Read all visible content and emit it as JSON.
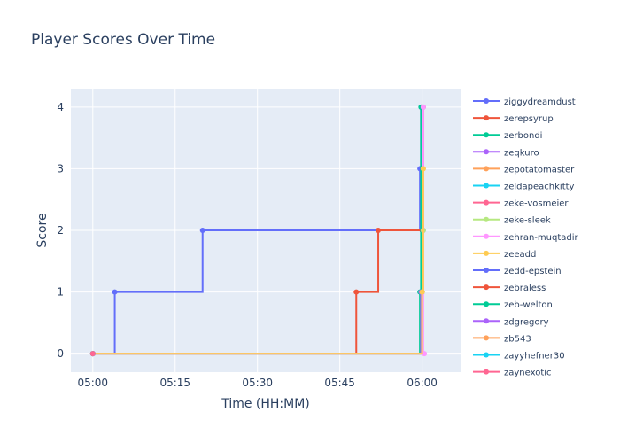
{
  "chart_data": {
    "type": "line",
    "line_shape": "step",
    "title": "Player Scores Over Time",
    "xlabel": "Time (HH:MM)",
    "ylabel": "Score",
    "xlim": [
      "04:56",
      "06:07"
    ],
    "ylim": [
      -0.3,
      4.3
    ],
    "x_ticks": [
      "05:00",
      "05:15",
      "05:30",
      "05:45",
      "06:00"
    ],
    "y_ticks": [
      0,
      1,
      2,
      3,
      4
    ],
    "grid": true,
    "legend_position": "right",
    "plot_bg": "#E5ECF6",
    "series": [
      {
        "name": "ziggydreamdust",
        "color": "#636EFA",
        "points": [
          [
            "05:00",
            0
          ],
          [
            "05:04",
            1
          ],
          [
            "05:20",
            2
          ],
          [
            "06:00",
            2
          ],
          [
            "05:59.6",
            3
          ],
          [
            "05:59.8",
            4
          ]
        ]
      },
      {
        "name": "zerepsyrup",
        "color": "#EF553B",
        "points": [
          [
            "05:00",
            0
          ],
          [
            "05:48",
            1
          ],
          [
            "05:52",
            2
          ],
          [
            "06:00",
            2
          ]
        ]
      },
      {
        "name": "zerbondi",
        "color": "#00CC96",
        "points": [
          [
            "05:00",
            0
          ],
          [
            "05:59.6",
            1
          ],
          [
            "05:59.8",
            4
          ]
        ]
      },
      {
        "name": "zeqkuro",
        "color": "#AB63FA",
        "points": [
          [
            "05:00",
            0
          ],
          [
            "05:59.8",
            1
          ],
          [
            "06:00.2",
            2
          ]
        ]
      },
      {
        "name": "zepotatomaster",
        "color": "#FFA15A",
        "points": [
          [
            "05:00",
            0
          ],
          [
            "06:00",
            1
          ],
          [
            "06:00.2",
            3
          ]
        ]
      },
      {
        "name": "zeldapeachkitty",
        "color": "#19D3F3",
        "points": [
          [
            "05:00",
            0
          ],
          [
            "06:00",
            1
          ],
          [
            "06:00.2",
            4
          ]
        ]
      },
      {
        "name": "zeke-vosmeier",
        "color": "#FF6692",
        "points": [
          [
            "05:00",
            0
          ],
          [
            "06:00",
            1
          ],
          [
            "06:00.2",
            4
          ]
        ]
      },
      {
        "name": "zeke-sleek",
        "color": "#B6E880",
        "points": [
          [
            "05:00",
            0
          ],
          [
            "06:00",
            1
          ],
          [
            "06:00.2",
            2
          ]
        ]
      },
      {
        "name": "zehran-muqtadir",
        "color": "#FF97FF",
        "points": [
          [
            "05:00",
            0
          ],
          [
            "06:00.4",
            0
          ],
          [
            "06:00.2",
            4
          ]
        ]
      },
      {
        "name": "zeeadd",
        "color": "#FECB52",
        "points": [
          [
            "05:00",
            0
          ],
          [
            "06:00",
            1
          ],
          [
            "06:00.2",
            3
          ]
        ]
      },
      {
        "name": "zedd-epstein",
        "color": "#636EFA",
        "points": [
          [
            "05:00",
            0
          ]
        ]
      },
      {
        "name": "zebraless",
        "color": "#EF553B",
        "points": [
          [
            "05:00",
            0
          ]
        ]
      },
      {
        "name": "zeb-welton",
        "color": "#00CC96",
        "points": [
          [
            "05:00",
            0
          ]
        ]
      },
      {
        "name": "zdgregory",
        "color": "#AB63FA",
        "points": [
          [
            "05:00",
            0
          ]
        ]
      },
      {
        "name": "zb543",
        "color": "#FFA15A",
        "points": [
          [
            "05:00",
            0
          ]
        ]
      },
      {
        "name": "zayyhefner30",
        "color": "#19D3F3",
        "points": [
          [
            "05:00",
            0
          ]
        ]
      },
      {
        "name": "zaynexotic",
        "color": "#FF6692",
        "points": [
          [
            "05:00",
            0
          ]
        ]
      }
    ]
  }
}
